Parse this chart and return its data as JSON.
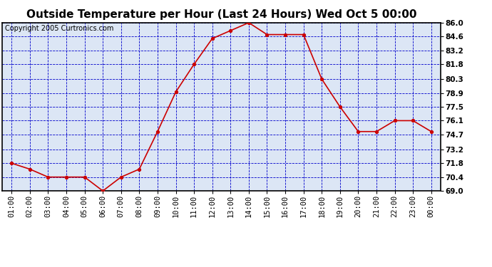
{
  "title": "Outside Temperature per Hour (Last 24 Hours) Wed Oct 5 00:00",
  "copyright": "Copyright 2005 Curtronics.com",
  "x_labels": [
    "01:00",
    "02:00",
    "03:00",
    "04:00",
    "05:00",
    "06:00",
    "07:00",
    "08:00",
    "09:00",
    "10:00",
    "11:00",
    "12:00",
    "13:00",
    "14:00",
    "15:00",
    "16:00",
    "17:00",
    "18:00",
    "19:00",
    "20:00",
    "21:00",
    "22:00",
    "23:00",
    "00:00"
  ],
  "y_values": [
    71.8,
    71.2,
    70.4,
    70.4,
    70.4,
    69.0,
    70.4,
    71.2,
    75.0,
    79.0,
    81.8,
    84.4,
    85.2,
    86.0,
    84.8,
    84.8,
    84.8,
    80.3,
    77.5,
    75.0,
    75.0,
    76.1,
    76.1,
    75.0
  ],
  "line_color": "#cc0000",
  "marker_color": "#cc0000",
  "background_color": "#dce6f5",
  "grid_color": "#0000cc",
  "title_color": "#000000",
  "y_min": 69.0,
  "y_max": 86.0,
  "y_ticks": [
    69.0,
    70.4,
    71.8,
    73.2,
    74.7,
    76.1,
    77.5,
    78.9,
    80.3,
    81.8,
    83.2,
    84.6,
    86.0
  ],
  "outer_bg": "#ffffff",
  "title_fontsize": 11,
  "copyright_fontsize": 7,
  "tick_fontsize": 7.5
}
